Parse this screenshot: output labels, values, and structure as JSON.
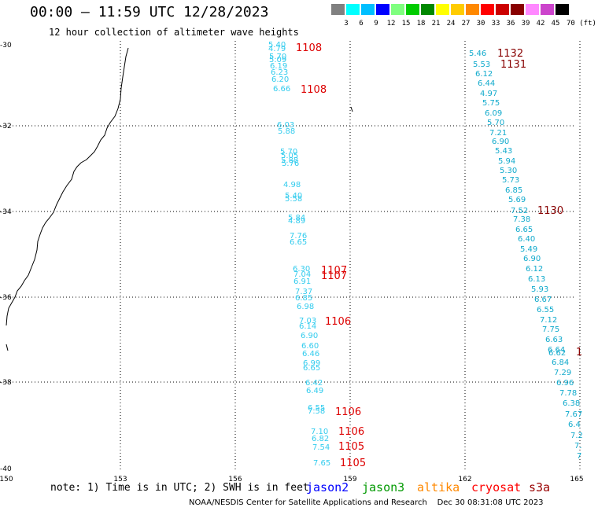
{
  "header": {
    "title": "00:00 – 11:59 UTC 12/28/2023",
    "subtitle": "12 hour collection of altimeter wave heights"
  },
  "color_scale": {
    "ticks": [
      "3",
      "6",
      "9",
      "12",
      "15",
      "18",
      "21",
      "24",
      "27",
      "30",
      "33",
      "36",
      "39",
      "42",
      "45",
      "70 (ft)"
    ],
    "colors": [
      "#808080",
      "#00ffff",
      "#00bfff",
      "#0000ff",
      "#7fff7f",
      "#00cc00",
      "#008800",
      "#ffff00",
      "#ffcc00",
      "#ff8800",
      "#ff0000",
      "#cc0000",
      "#880000",
      "#ff88ff",
      "#cc44cc",
      "#000000"
    ]
  },
  "map": {
    "lon_labels": [
      "150",
      "153",
      "156",
      "159",
      "162",
      "165"
    ],
    "lat_labels": [
      "-30",
      "-32",
      "-34",
      "-36",
      "-38",
      "-40"
    ],
    "track_west": {
      "color": "#33ccee",
      "values": [
        "5.40",
        "4.79",
        "5.70",
        "5.09",
        "6.19",
        "6.23",
        "6.20",
        "6.66",
        "6.03",
        "5.88",
        "5.70",
        "5.05",
        "5.88",
        "5.76",
        "4.98",
        "5.40",
        "5.58",
        "5.84",
        "4.89",
        "7.76",
        "6.65",
        "6.30",
        "7.04",
        "6.91",
        "7.37",
        "6.85",
        "6.98",
        "7.03",
        "6.14",
        "6.90",
        "6.60",
        "6.46",
        "6.99",
        "6.65",
        "6.42",
        "6.49",
        "6.55",
        "7.58",
        "7.10",
        "6.82",
        "7.54",
        "7.65"
      ]
    },
    "track_west_cycles": [
      {
        "id": "1108",
        "color": "#dd0000"
      },
      {
        "id": "1108",
        "color": "#dd0000"
      },
      {
        "id": "1107",
        "color": "#dd0000"
      },
      {
        "id": "1107",
        "color": "#dd0000"
      },
      {
        "id": "1106",
        "color": "#dd0000"
      },
      {
        "id": "1106",
        "color": "#dd0000"
      },
      {
        "id": "1106",
        "color": "#dd0000"
      },
      {
        "id": "1105",
        "color": "#dd0000"
      },
      {
        "id": "1105",
        "color": "#dd0000"
      }
    ],
    "track_east": {
      "color": "#11aacc",
      "values": [
        "5.46",
        "5.53",
        "6.12",
        "6.44",
        "4.97",
        "5.75",
        "6.09",
        "5.70",
        "7.21",
        "6.90",
        "5.43",
        "5.94",
        "5.30",
        "5.73",
        "6.85",
        "5.69",
        "7.52",
        "7.38",
        "6.65",
        "6.40",
        "5.49",
        "6.90",
        "6.12",
        "6.13",
        "5.93",
        "6.67",
        "6.55",
        "7.12",
        "7.75",
        "6.63",
        "6.64",
        "6.62",
        "6.84",
        "7.29",
        "6.96",
        "7.78",
        "6.38",
        "7.67",
        "6.4",
        "7.2",
        "7.",
        "7"
      ]
    },
    "track_east_cycles": [
      {
        "id": "1132",
        "color": "#880000"
      },
      {
        "id": "1131",
        "color": "#880000"
      },
      {
        "id": "1130",
        "color": "#880000"
      },
      {
        "id": "1",
        "color": "#880000"
      }
    ]
  },
  "footer": {
    "note": "note: 1) Time is in UTC; 2) SWH is in feet",
    "satellites": [
      {
        "name": "jason2",
        "color": "#0000ff"
      },
      {
        "name": "jason3",
        "color": "#009900"
      },
      {
        "name": "altika",
        "color": "#ff8800"
      },
      {
        "name": "cryosat",
        "color": "#ff0000"
      },
      {
        "name": "s3a",
        "color": "#990000"
      }
    ],
    "credit": "NOAA/NESDIS Center for Satellite Applications and Research    Dec 30 08:31:08 UTC 2023"
  }
}
